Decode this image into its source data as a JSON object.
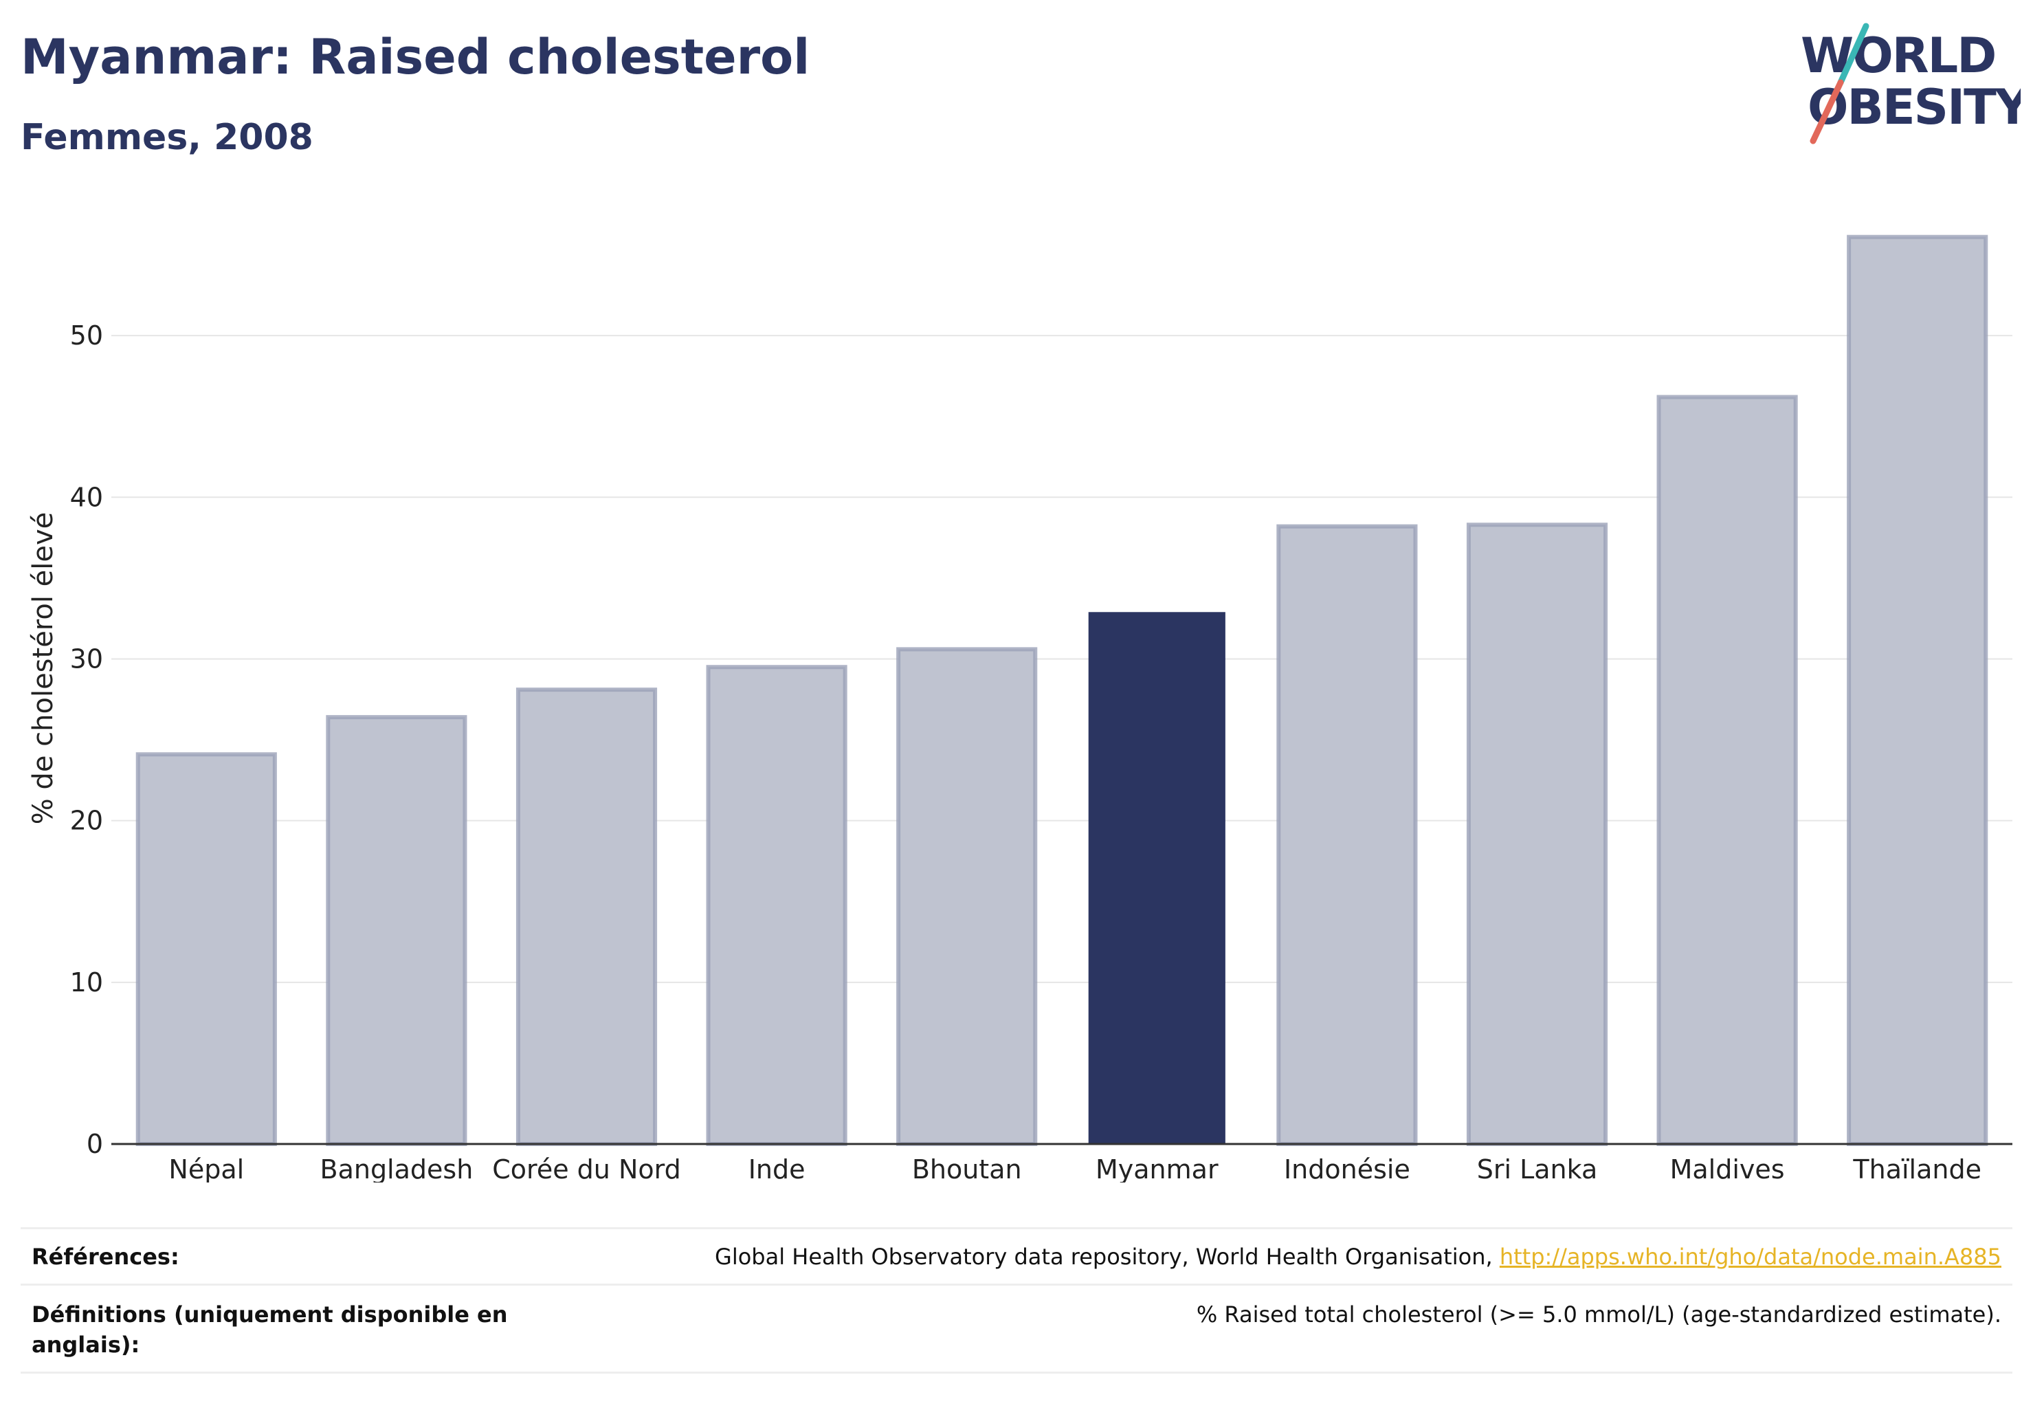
{
  "header": {
    "title": "Myanmar: Raised cholesterol",
    "subtitle": "Femmes, 2008"
  },
  "logo": {
    "line1": "WORLD",
    "line2": "OBESITY"
  },
  "colors": {
    "highlight": "#2b3561",
    "bar": "#bfc3d0",
    "bar_border": "#9ba1b8",
    "grid": "#e6e6e6",
    "logo_teal": "#3ab7b5",
    "logo_red": "#e2685a",
    "link": "#e6b426"
  },
  "chart_data": {
    "type": "bar",
    "title": "Myanmar: Raised cholesterol",
    "subtitle": "Femmes, 2008",
    "xlabel": "",
    "ylabel": "% de cholestérol élevé",
    "categories": [
      "Népal",
      "Bangladesh",
      "Corée du Nord",
      "Inde",
      "Bhoutan",
      "Myanmar",
      "Indonésie",
      "Sri Lanka",
      "Maldives",
      "Thaïlande"
    ],
    "values": [
      24.1,
      26.4,
      28.1,
      29.5,
      30.6,
      32.9,
      38.2,
      38.3,
      46.2,
      56.1
    ],
    "highlight": "Myanmar",
    "ylim": [
      0,
      58
    ],
    "yticks": [
      0,
      10,
      20,
      30,
      40,
      50
    ],
    "grid": true,
    "legend": "none"
  },
  "footer": {
    "references_label": "Références:",
    "references_text": "Global Health Observatory data repository, World Health Organisation, ",
    "references_link": "http://apps.who.int/gho/data/node.main.A885",
    "definitions_label": "Définitions (uniquement disponible en anglais):",
    "definitions_text": "% Raised total cholesterol (>= 5.0 mmol/L) (age-standardized estimate)."
  }
}
